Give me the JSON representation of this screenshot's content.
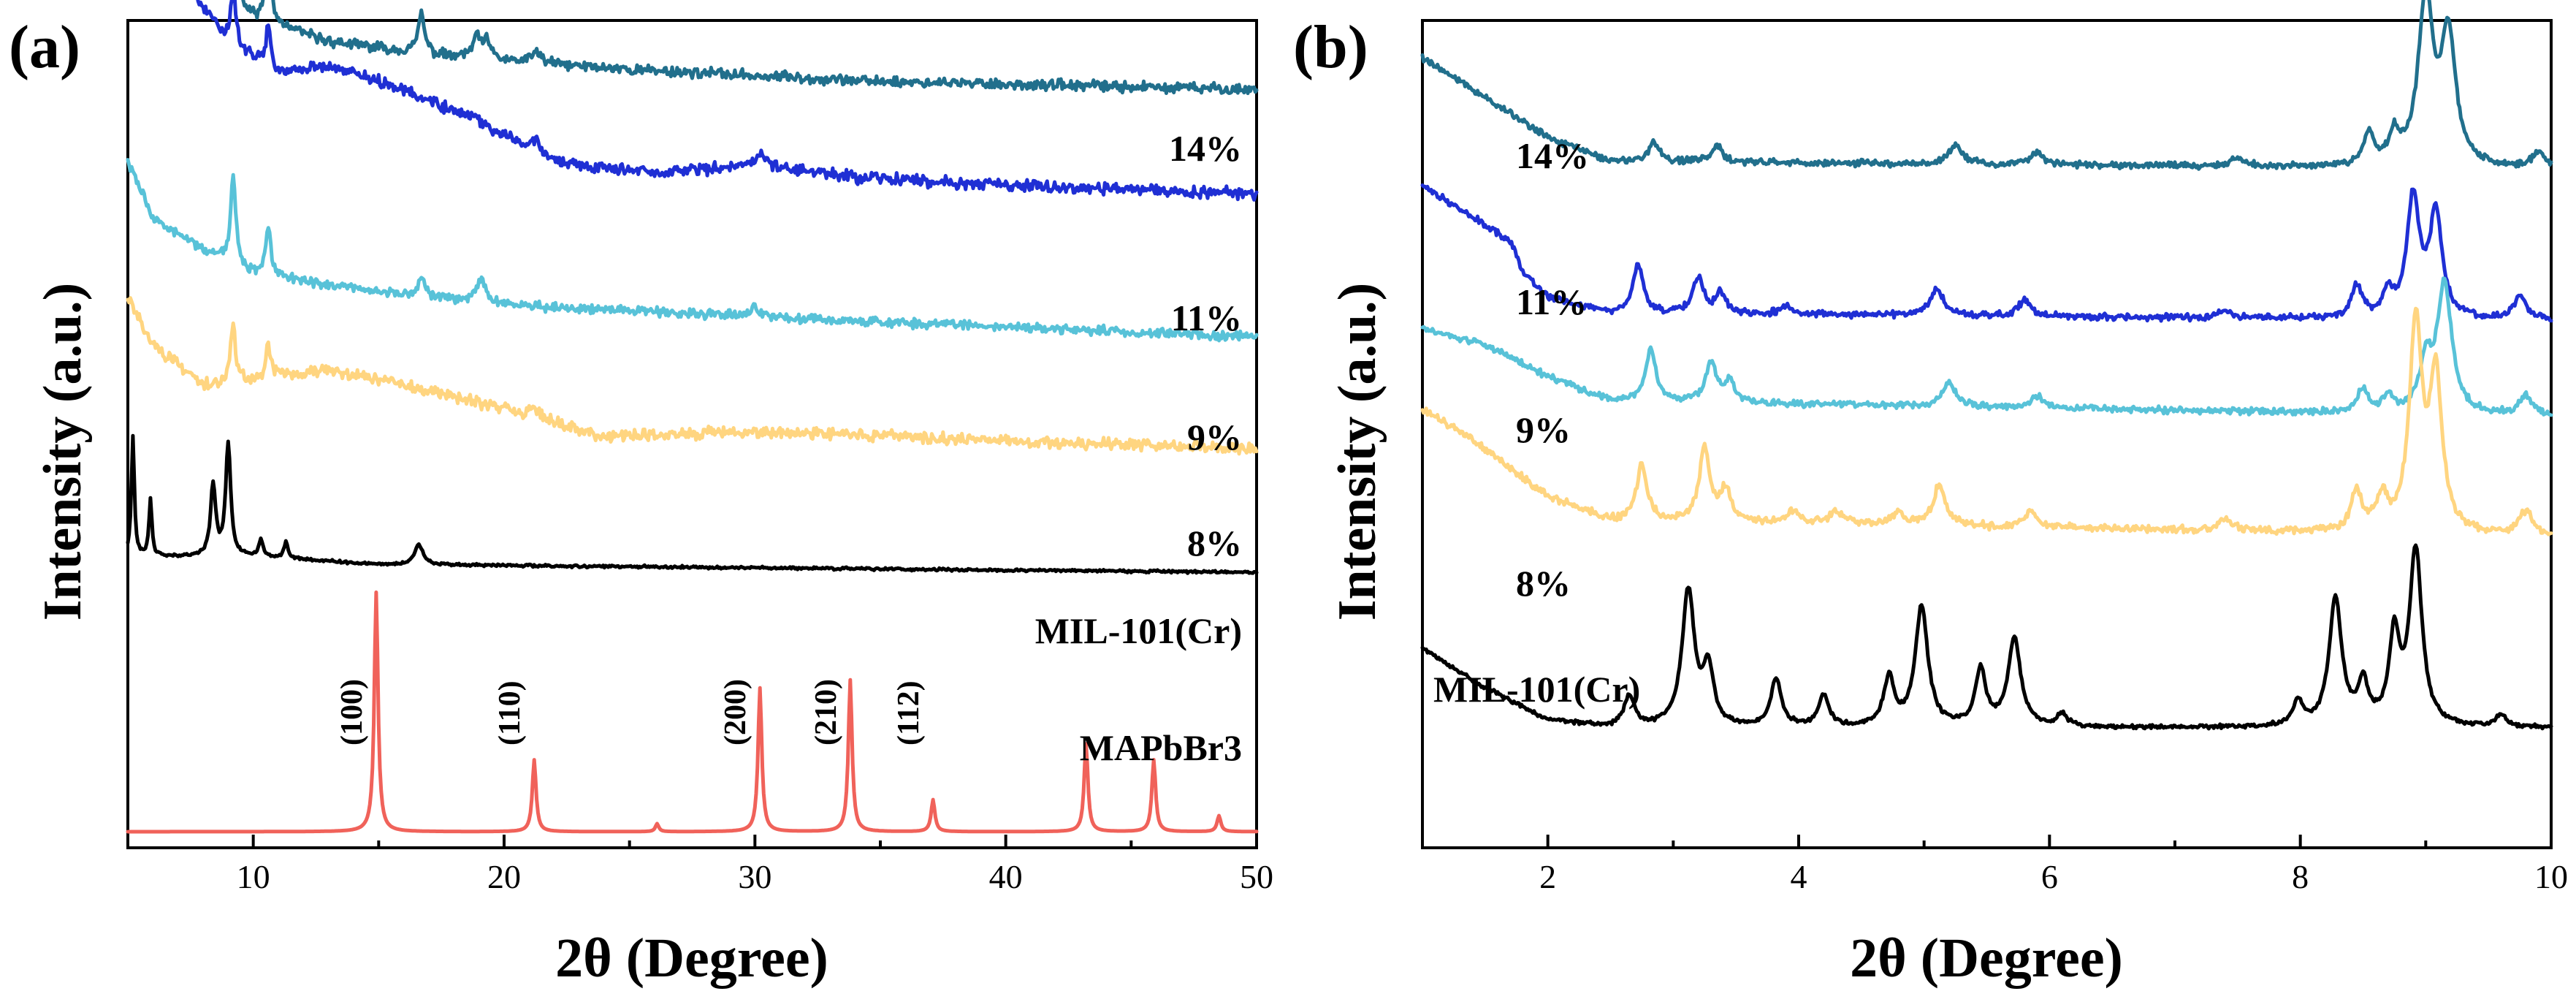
{
  "panels": [
    {
      "label": "(a)",
      "xlabel": "2θ (Degree)",
      "ylabel": "Intensity (a.u.)",
      "xlim": [
        5,
        50
      ],
      "xticks": [
        10,
        20,
        30,
        40,
        50
      ],
      "xtick_labels": [
        "10",
        "20",
        "30",
        "40",
        "50"
      ],
      "series": [
        {
          "name": "14%",
          "color": "#216f8c",
          "baseline": 0.93,
          "noise": 0.008,
          "background": [
            [
              5,
              0.35
            ],
            [
              6,
              0.23
            ],
            [
              8,
              0.14
            ],
            [
              10,
              0.09
            ],
            [
              13,
              0.06
            ],
            [
              18,
              0.04
            ],
            [
              25,
              0.025
            ],
            [
              35,
              0.01
            ],
            [
              50,
              0.0
            ]
          ],
          "peaks": [
            [
              5.3,
              0.08,
              0.1
            ],
            [
              8.6,
              0.05,
              0.12
            ],
            [
              9.2,
              0.16,
              0.12
            ],
            [
              10.6,
              0.09,
              0.12
            ],
            [
              16.7,
              0.05,
              0.15
            ],
            [
              18.9,
              0.025,
              0.2
            ],
            [
              19.3,
              0.02,
              0.2
            ],
            [
              21.3,
              0.015,
              0.2
            ]
          ]
        },
        {
          "name": "11%",
          "color": "#1f2fd4",
          "baseline": 0.8,
          "noise": 0.009,
          "background": [
            [
              5,
              0.36
            ],
            [
              7,
              0.28
            ],
            [
              9,
              0.19
            ],
            [
              11,
              0.15
            ],
            [
              13,
              0.16
            ],
            [
              16,
              0.13
            ],
            [
              19,
              0.09
            ],
            [
              22,
              0.04
            ],
            [
              26,
              0.025
            ],
            [
              30,
              0.035
            ],
            [
              34,
              0.02
            ],
            [
              40,
              0.01
            ],
            [
              50,
              0.0
            ]
          ],
          "peaks": [
            [
              9.2,
              0.07,
              0.12
            ],
            [
              10.6,
              0.05,
              0.12
            ],
            [
              21.3,
              0.02,
              0.2
            ],
            [
              30.2,
              0.015,
              0.3
            ]
          ]
        },
        {
          "name": "9%",
          "color": "#58c2d8",
          "baseline": 0.62,
          "noise": 0.007,
          "background": [
            [
              5,
              0.22
            ],
            [
              6,
              0.15
            ],
            [
              8,
              0.11
            ],
            [
              10,
              0.08
            ],
            [
              14,
              0.06
            ],
            [
              20,
              0.04
            ],
            [
              30,
              0.025
            ],
            [
              50,
              0.0
            ]
          ],
          "peaks": [
            [
              9.2,
              0.11,
              0.12
            ],
            [
              10.6,
              0.06,
              0.12
            ],
            [
              16.7,
              0.025,
              0.15
            ],
            [
              19.1,
              0.03,
              0.2
            ],
            [
              30.0,
              0.01,
              0.3
            ]
          ]
        },
        {
          "name": "8%",
          "color": "#ffd580",
          "baseline": 0.48,
          "noise": 0.009,
          "background": [
            [
              5,
              0.19
            ],
            [
              6,
              0.13
            ],
            [
              8,
              0.08
            ],
            [
              11,
              0.09
            ],
            [
              13,
              0.1
            ],
            [
              16,
              0.08
            ],
            [
              20,
              0.05
            ],
            [
              24,
              0.015
            ],
            [
              28,
              0.02
            ],
            [
              32,
              0.02
            ],
            [
              36,
              0.015
            ],
            [
              40,
              0.01
            ],
            [
              50,
              0.0
            ]
          ],
          "peaks": [
            [
              9.2,
              0.07,
              0.12
            ],
            [
              10.6,
              0.04,
              0.12
            ],
            [
              21.2,
              0.015,
              0.2
            ]
          ]
        },
        {
          "name": "MIL-101(Cr)",
          "color": "#000000",
          "baseline": 0.325,
          "noise": 0.002,
          "background": [
            [
              5,
              0.02
            ],
            [
              10,
              0.02
            ],
            [
              15,
              0.01
            ],
            [
              50,
              0.0
            ]
          ],
          "peaks": [
            [
              5.2,
              0.15,
              0.07
            ],
            [
              5.9,
              0.07,
              0.07
            ],
            [
              8.4,
              0.09,
              0.12
            ],
            [
              9.0,
              0.14,
              0.12
            ],
            [
              10.3,
              0.02,
              0.1
            ],
            [
              11.3,
              0.02,
              0.1
            ],
            [
              16.6,
              0.025,
              0.2
            ]
          ]
        },
        {
          "name": "MAPbBr3",
          "color": "#f0625a",
          "baseline": 0.0,
          "noise": 0.0,
          "background": [
            [
              5,
              0.0
            ],
            [
              50,
              0.0
            ]
          ],
          "peaks": [
            [
              14.9,
              0.3,
              0.09
            ],
            [
              21.2,
              0.09,
              0.09
            ],
            [
              26.1,
              0.01,
              0.08
            ],
            [
              30.2,
              0.18,
              0.09
            ],
            [
              33.8,
              0.19,
              0.09
            ],
            [
              37.1,
              0.04,
              0.09
            ],
            [
              43.2,
              0.11,
              0.09
            ],
            [
              45.9,
              0.09,
              0.09
            ],
            [
              48.5,
              0.02,
              0.09
            ]
          ]
        }
      ]
    },
    {
      "label": "(b)",
      "xlabel": "2θ (Degree)",
      "ylabel": "Intensity (a.u.)",
      "xlim": [
        1,
        10
      ],
      "xticks": [
        2,
        4,
        6,
        8,
        10
      ],
      "xtick_labels": [
        "2",
        "4",
        "6",
        "8",
        "10"
      ],
      "series": [
        {
          "name": "14%",
          "color": "#216f8c",
          "baseline": 0.83,
          "noise": 0.005,
          "background": [
            [
              1,
              0.14
            ],
            [
              1.5,
              0.09
            ],
            [
              2,
              0.04
            ],
            [
              2.5,
              0.01
            ],
            [
              10,
              0.0
            ]
          ],
          "peaks": [
            [
              2.85,
              0.025,
              0.05
            ],
            [
              3.35,
              0.02,
              0.05
            ],
            [
              5.25,
              0.025,
              0.06
            ],
            [
              5.9,
              0.015,
              0.06
            ],
            [
              7.5,
              0.01,
              0.06
            ],
            [
              8.55,
              0.04,
              0.05
            ],
            [
              8.75,
              0.035,
              0.05
            ],
            [
              9.0,
              0.21,
              0.07
            ],
            [
              9.18,
              0.16,
              0.07
            ],
            [
              9.9,
              0.02,
              0.06
            ]
          ]
        },
        {
          "name": "11%",
          "color": "#1f2fd4",
          "baseline": 0.64,
          "noise": 0.005,
          "background": [
            [
              1,
              0.17
            ],
            [
              1.4,
              0.13
            ],
            [
              1.7,
              0.1
            ],
            [
              1.8,
              0.06
            ],
            [
              2,
              0.03
            ],
            [
              2.5,
              0.01
            ],
            [
              10,
              0.0
            ]
          ],
          "peaks": [
            [
              2.72,
              0.06,
              0.05
            ],
            [
              3.2,
              0.045,
              0.05
            ],
            [
              3.38,
              0.025,
              0.05
            ],
            [
              3.9,
              0.01,
              0.06
            ],
            [
              5.1,
              0.035,
              0.06
            ],
            [
              5.8,
              0.02,
              0.06
            ],
            [
              7.4,
              0.01,
              0.06
            ],
            [
              8.45,
              0.04,
              0.05
            ],
            [
              8.7,
              0.03,
              0.05
            ],
            [
              8.9,
              0.15,
              0.06
            ],
            [
              9.08,
              0.13,
              0.06
            ],
            [
              9.75,
              0.03,
              0.06
            ]
          ]
        },
        {
          "name": "9%",
          "color": "#58c2d8",
          "baseline": 0.52,
          "noise": 0.005,
          "background": [
            [
              1,
              0.11
            ],
            [
              1.5,
              0.09
            ],
            [
              2,
              0.05
            ],
            [
              2.5,
              0.02
            ],
            [
              10,
              0.0
            ]
          ],
          "peaks": [
            [
              2.82,
              0.065,
              0.05
            ],
            [
              3.3,
              0.05,
              0.05
            ],
            [
              3.45,
              0.025,
              0.05
            ],
            [
              5.2,
              0.03,
              0.06
            ],
            [
              5.9,
              0.015,
              0.06
            ],
            [
              8.5,
              0.03,
              0.05
            ],
            [
              8.7,
              0.02,
              0.05
            ],
            [
              9.0,
              0.06,
              0.06
            ],
            [
              9.15,
              0.16,
              0.07
            ],
            [
              9.8,
              0.025,
              0.06
            ]
          ]
        },
        {
          "name": "8%",
          "color": "#ffd580",
          "baseline": 0.37,
          "noise": 0.006,
          "background": [
            [
              1,
              0.16
            ],
            [
              1.5,
              0.11
            ],
            [
              2,
              0.05
            ],
            [
              2.5,
              0.02
            ],
            [
              10,
              0.0
            ]
          ],
          "peaks": [
            [
              2.75,
              0.07,
              0.05
            ],
            [
              3.25,
              0.09,
              0.05
            ],
            [
              3.42,
              0.04,
              0.05
            ],
            [
              3.95,
              0.015,
              0.06
            ],
            [
              4.3,
              0.015,
              0.06
            ],
            [
              4.8,
              0.015,
              0.06
            ],
            [
              5.12,
              0.05,
              0.06
            ],
            [
              5.85,
              0.02,
              0.06
            ],
            [
              7.4,
              0.015,
              0.06
            ],
            [
              8.45,
              0.05,
              0.05
            ],
            [
              8.65,
              0.04,
              0.05
            ],
            [
              8.92,
              0.26,
              0.06
            ],
            [
              9.08,
              0.19,
              0.06
            ],
            [
              9.8,
              0.03,
              0.06
            ]
          ]
        },
        {
          "name": "MIL-101(Cr)",
          "color": "#000000",
          "baseline": 0.13,
          "noise": 0.003,
          "background": [
            [
              1,
              0.1
            ],
            [
              1.5,
              0.05
            ],
            [
              2,
              0.01
            ],
            [
              2.5,
              0.0
            ],
            [
              10,
              0.0
            ]
          ],
          "peaks": [
            [
              2.65,
              0.04,
              0.05
            ],
            [
              3.12,
              0.17,
              0.06
            ],
            [
              3.28,
              0.07,
              0.05
            ],
            [
              3.82,
              0.06,
              0.05
            ],
            [
              4.2,
              0.04,
              0.05
            ],
            [
              4.72,
              0.06,
              0.05
            ],
            [
              4.98,
              0.15,
              0.06
            ],
            [
              5.45,
              0.07,
              0.05
            ],
            [
              5.72,
              0.11,
              0.06
            ],
            [
              6.1,
              0.015,
              0.05
            ],
            [
              7.98,
              0.03,
              0.05
            ],
            [
              8.28,
              0.16,
              0.06
            ],
            [
              8.5,
              0.05,
              0.05
            ],
            [
              8.75,
              0.11,
              0.05
            ],
            [
              8.92,
              0.22,
              0.06
            ],
            [
              9.6,
              0.015,
              0.05
            ]
          ]
        }
      ]
    }
  ],
  "annotations": {
    "a": {
      "labels": [
        "14%",
        "11%",
        "9%",
        "8%",
        "MIL-101(Cr)",
        "MAPbBr3"
      ],
      "hkl": [
        "(100)",
        "(110)",
        "(200)",
        "(210)",
        "(112)"
      ],
      "hkl_x": [
        14.9,
        21.2,
        30.2,
        33.8,
        37.1
      ]
    },
    "b": {
      "labels": [
        "14%",
        "11%",
        "9%",
        "8%",
        "MIL-101(Cr)"
      ]
    }
  }
}
